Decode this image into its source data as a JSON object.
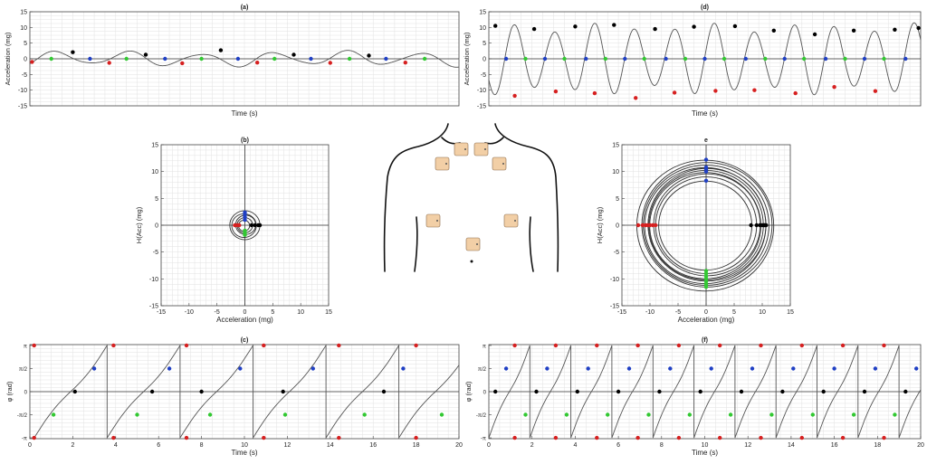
{
  "colors": {
    "black_pt": "#000000",
    "blue_pt": "#1f3fc4",
    "red_pt": "#d62020",
    "green_pt": "#32c832",
    "trace": "#555555",
    "grid": "#e2e2e2",
    "pad": "#f2cfa6"
  },
  "chart_data": [
    {
      "id": "a",
      "type": "line",
      "title": "(a)",
      "xlabel": "Time (s)",
      "ylabel": "Acceleration (mg)",
      "xlim": [
        0,
        20
      ],
      "ylim": [
        -15,
        15
      ],
      "yticks": [
        -15,
        -10,
        -5,
        0,
        5,
        10,
        15
      ],
      "show_xticklabels": false,
      "grid": true,
      "series": [
        {
          "waveform": "sine",
          "amplitude": [
            1.3,
            2.7
          ],
          "period_s": 3.4,
          "x_start": 0,
          "x_end": 20
        }
      ],
      "markers": {
        "black": [
          [
            2.0,
            2.1
          ],
          [
            5.4,
            1.3
          ],
          [
            8.9,
            2.7
          ],
          [
            12.3,
            1.3
          ],
          [
            15.8,
            1.0
          ]
        ],
        "blue": [
          [
            2.8,
            0.0
          ],
          [
            6.3,
            0.0
          ],
          [
            9.7,
            0.0
          ],
          [
            13.1,
            0.0
          ],
          [
            16.6,
            0.0
          ]
        ],
        "red": [
          [
            0.1,
            -1.0
          ],
          [
            3.7,
            -1.3
          ],
          [
            7.1,
            -1.4
          ],
          [
            10.6,
            -1.2
          ],
          [
            14.0,
            -1.3
          ],
          [
            17.5,
            -1.2
          ]
        ],
        "green": [
          [
            1.0,
            0.0
          ],
          [
            4.5,
            0.0
          ],
          [
            8.0,
            0.0
          ],
          [
            11.4,
            0.0
          ],
          [
            14.9,
            0.0
          ],
          [
            18.4,
            0.0
          ]
        ]
      }
    },
    {
      "id": "b",
      "type": "scatter",
      "title": "(b)",
      "xlabel": "Acceleration (mg)",
      "ylabel": "H(Acc) (mg)",
      "xlim": [
        -15,
        15
      ],
      "ylim": [
        -15,
        15
      ],
      "xticks": [
        -15,
        -10,
        -5,
        0,
        5,
        10,
        15
      ],
      "yticks": [
        -15,
        -10,
        -5,
        0,
        5,
        10,
        15
      ],
      "grid": true,
      "orbit_radii": [
        1.0,
        1.4,
        1.8,
        2.2,
        2.7
      ],
      "markers": {
        "black": [
          [
            1.2,
            0.0
          ],
          [
            1.8,
            0.0
          ],
          [
            2.4,
            0.0
          ],
          [
            2.7,
            0.0
          ]
        ],
        "blue": [
          [
            0.0,
            1.0
          ],
          [
            0.0,
            1.5
          ],
          [
            0.0,
            2.0
          ],
          [
            0.0,
            2.4
          ]
        ],
        "red": [
          [
            -1.0,
            0.0
          ],
          [
            -1.4,
            0.0
          ],
          [
            -1.8,
            0.0
          ]
        ],
        "green": [
          [
            0.0,
            -1.0
          ],
          [
            0.0,
            -1.4
          ],
          [
            0.0,
            -1.8
          ]
        ]
      }
    },
    {
      "id": "c",
      "type": "line",
      "title": "(c)",
      "xlabel": "Time (s)",
      "ylabel": "φ (rad)",
      "xlim": [
        0,
        20
      ],
      "ylim": [
        -3.2,
        3.2
      ],
      "xticks": [
        0,
        2,
        4,
        6,
        8,
        10,
        12,
        14,
        16,
        18,
        20
      ],
      "ytick_values": [
        -3.14159,
        -1.5708,
        0,
        1.5708,
        3.14159
      ],
      "ytick_labels": [
        "-π",
        "-π/2",
        "0",
        "π/2",
        "π"
      ],
      "grid": true,
      "series": [
        {
          "waveform": "sawtooth",
          "period_s": 3.4,
          "x_start": 0.2,
          "x_end": 20
        }
      ],
      "markers": {
        "black": [
          [
            2.1,
            0.0
          ],
          [
            5.7,
            0.0
          ],
          [
            8.0,
            0.0
          ],
          [
            11.8,
            0.0
          ],
          [
            16.5,
            0.0
          ]
        ],
        "blue": [
          [
            3.0,
            1.5708
          ],
          [
            6.5,
            1.5708
          ],
          [
            9.8,
            1.5708
          ],
          [
            13.2,
            1.5708
          ],
          [
            17.4,
            1.5708
          ]
        ],
        "red": [
          [
            0.2,
            3.14159
          ],
          [
            0.2,
            -3.14159
          ],
          [
            3.9,
            3.14159
          ],
          [
            3.9,
            -3.14159
          ],
          [
            7.3,
            3.14159
          ],
          [
            7.3,
            -3.14159
          ],
          [
            10.9,
            3.14159
          ],
          [
            10.9,
            -3.14159
          ],
          [
            14.4,
            3.14159
          ],
          [
            14.4,
            -3.14159
          ],
          [
            18.0,
            3.14159
          ],
          [
            18.0,
            -3.14159
          ]
        ],
        "green": [
          [
            1.1,
            -1.5708
          ],
          [
            5.0,
            -1.5708
          ],
          [
            8.4,
            -1.5708
          ],
          [
            11.9,
            -1.5708
          ],
          [
            15.6,
            -1.5708
          ],
          [
            19.2,
            -1.5708
          ]
        ]
      }
    },
    {
      "id": "d",
      "type": "line",
      "title": "(d)",
      "xlabel": "Time (s)",
      "ylabel": "Acceleration (mg)",
      "xlim": [
        0,
        20
      ],
      "ylim": [
        -15,
        15
      ],
      "yticks": [
        -15,
        -10,
        -5,
        0,
        5,
        10,
        15
      ],
      "show_xticklabels": false,
      "grid": true,
      "series": [
        {
          "waveform": "sine",
          "amplitude": [
            8.5,
            11.5
          ],
          "period_s": 1.85,
          "x_start": 0,
          "x_end": 20
        }
      ],
      "markers": {
        "black": [
          [
            0.3,
            10.5
          ],
          [
            2.1,
            9.5
          ],
          [
            4.0,
            10.3
          ],
          [
            5.8,
            10.8
          ],
          [
            7.7,
            9.5
          ],
          [
            9.5,
            10.2
          ],
          [
            11.4,
            10.4
          ],
          [
            13.2,
            9.0
          ],
          [
            15.1,
            7.8
          ],
          [
            16.9,
            9.0
          ],
          [
            18.8,
            9.3
          ],
          [
            19.9,
            9.8
          ]
        ],
        "blue": [
          [
            0.8,
            0.0
          ],
          [
            2.6,
            0.0
          ],
          [
            4.5,
            0.0
          ],
          [
            6.3,
            0.0
          ],
          [
            8.2,
            0.0
          ],
          [
            10.0,
            0.0
          ],
          [
            11.9,
            0.0
          ],
          [
            13.7,
            0.0
          ],
          [
            15.6,
            0.0
          ],
          [
            17.4,
            0.0
          ],
          [
            19.3,
            0.0
          ]
        ],
        "red": [
          [
            1.2,
            -11.8
          ],
          [
            3.1,
            -10.4
          ],
          [
            4.9,
            -11.0
          ],
          [
            6.8,
            -12.5
          ],
          [
            8.6,
            -10.8
          ],
          [
            10.5,
            -10.2
          ],
          [
            12.3,
            -10.0
          ],
          [
            14.2,
            -11.0
          ],
          [
            16.0,
            -9.0
          ],
          [
            17.9,
            -10.3
          ]
        ],
        "green": [
          [
            1.7,
            0.0
          ],
          [
            3.5,
            0.0
          ],
          [
            5.4,
            0.0
          ],
          [
            7.2,
            0.0
          ],
          [
            9.1,
            0.0
          ],
          [
            10.9,
            0.0
          ],
          [
            12.8,
            0.0
          ],
          [
            14.6,
            0.0
          ],
          [
            16.5,
            0.0
          ],
          [
            18.3,
            0.0
          ]
        ]
      }
    },
    {
      "id": "e",
      "type": "scatter",
      "title": "e",
      "xlabel": "Acceleration (mg)",
      "ylabel": "H(Acc) (mg)",
      "xlim": [
        -15,
        15
      ],
      "ylim": [
        -15,
        15
      ],
      "xticks": [
        -15,
        -10,
        -5,
        0,
        5,
        10,
        15
      ],
      "yticks": [
        -15,
        -10,
        -5,
        0,
        5,
        10,
        15
      ],
      "grid": true,
      "orbit_radii": [
        8.3,
        9.0,
        9.5,
        9.9,
        10.2,
        10.5,
        10.8,
        11.2,
        11.6,
        12.2
      ],
      "markers": {
        "black": [
          [
            8.0,
            0.0
          ],
          [
            9.0,
            0.0
          ],
          [
            9.6,
            0.0
          ],
          [
            10.0,
            0.0
          ],
          [
            10.3,
            0.0
          ],
          [
            10.5,
            0.0
          ],
          [
            10.7,
            0.0
          ]
        ],
        "blue": [
          [
            0.0,
            8.3
          ],
          [
            0.0,
            10.0
          ],
          [
            0.0,
            10.4
          ],
          [
            0.0,
            10.8
          ],
          [
            0.0,
            12.2
          ]
        ],
        "red": [
          [
            -9.0,
            0.0
          ],
          [
            -9.5,
            0.0
          ],
          [
            -10.0,
            0.0
          ],
          [
            -10.4,
            0.0
          ],
          [
            -10.8,
            0.0
          ],
          [
            -11.3,
            0.0
          ],
          [
            -12.1,
            0.0
          ]
        ],
        "green": [
          [
            0.0,
            -8.5
          ],
          [
            0.0,
            -9.0
          ],
          [
            0.0,
            -9.5
          ],
          [
            0.0,
            -10.0
          ],
          [
            0.0,
            -10.5
          ],
          [
            0.0,
            -11.0
          ],
          [
            0.0,
            -11.5
          ]
        ]
      }
    },
    {
      "id": "f",
      "type": "line",
      "title": "(f)",
      "xlabel": "Time (s)",
      "ylabel": "φ (rad)",
      "xlim": [
        0,
        20
      ],
      "ylim": [
        -3.2,
        3.2
      ],
      "xticks": [
        0,
        2,
        4,
        6,
        8,
        10,
        12,
        14,
        16,
        18,
        20
      ],
      "ytick_values": [
        -3.14159,
        -1.5708,
        0,
        1.5708,
        3.14159
      ],
      "ytick_labels": [
        "-π",
        "-π/2",
        "0",
        "π/2",
        "π"
      ],
      "grid": true,
      "series": [
        {
          "waveform": "sawtooth",
          "period_s": 1.9,
          "x_start": 0.0,
          "x_end": 20
        }
      ],
      "markers": {
        "black": [
          [
            0.3,
            0.0
          ],
          [
            2.2,
            0.0
          ],
          [
            4.1,
            0.0
          ],
          [
            6.0,
            0.0
          ],
          [
            7.9,
            0.0
          ],
          [
            9.8,
            0.0
          ],
          [
            11.7,
            0.0
          ],
          [
            13.6,
            0.0
          ],
          [
            15.5,
            0.0
          ],
          [
            17.4,
            0.0
          ],
          [
            19.3,
            0.0
          ]
        ],
        "blue": [
          [
            0.8,
            1.5708
          ],
          [
            2.7,
            1.5708
          ],
          [
            4.6,
            1.5708
          ],
          [
            6.5,
            1.5708
          ],
          [
            8.4,
            1.5708
          ],
          [
            10.3,
            1.5708
          ],
          [
            12.2,
            1.5708
          ],
          [
            14.1,
            1.5708
          ],
          [
            16.0,
            1.5708
          ],
          [
            17.9,
            1.5708
          ],
          [
            19.8,
            1.5708
          ]
        ],
        "red": [
          [
            1.2,
            3.14159
          ],
          [
            1.2,
            -3.14159
          ],
          [
            3.1,
            3.14159
          ],
          [
            3.1,
            -3.14159
          ],
          [
            5.0,
            3.14159
          ],
          [
            5.0,
            -3.14159
          ],
          [
            6.9,
            3.14159
          ],
          [
            6.9,
            -3.14159
          ],
          [
            8.8,
            3.14159
          ],
          [
            8.8,
            -3.14159
          ],
          [
            10.7,
            3.14159
          ],
          [
            10.7,
            -3.14159
          ],
          [
            12.6,
            3.14159
          ],
          [
            12.6,
            -3.14159
          ],
          [
            14.5,
            3.14159
          ],
          [
            14.5,
            -3.14159
          ],
          [
            16.4,
            3.14159
          ],
          [
            16.4,
            -3.14159
          ],
          [
            18.3,
            3.14159
          ],
          [
            18.3,
            -3.14159
          ]
        ],
        "green": [
          [
            1.7,
            -1.5708
          ],
          [
            3.6,
            -1.5708
          ],
          [
            5.5,
            -1.5708
          ],
          [
            7.4,
            -1.5708
          ],
          [
            9.3,
            -1.5708
          ],
          [
            11.2,
            -1.5708
          ],
          [
            13.1,
            -1.5708
          ],
          [
            15.0,
            -1.5708
          ],
          [
            16.9,
            -1.5708
          ],
          [
            18.8,
            -1.5708
          ]
        ]
      }
    }
  ],
  "torso_diagram": {
    "electrode_pads": 7
  }
}
